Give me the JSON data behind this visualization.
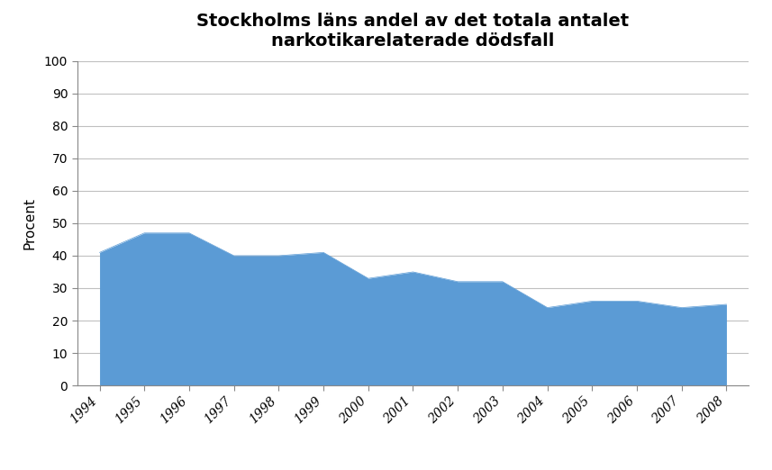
{
  "title": "Stockholms läns andel av det totala antalet\nnarkotikarelaterade dödsfall",
  "ylabel": "Procent",
  "years": [
    1994,
    1995,
    1996,
    1997,
    1998,
    1999,
    2000,
    2001,
    2002,
    2003,
    2004,
    2005,
    2006,
    2007,
    2008
  ],
  "values": [
    41,
    47,
    47,
    40,
    40,
    41,
    33,
    35,
    32,
    32,
    24,
    26,
    26,
    24,
    25
  ],
  "fill_color": "#5b9bd5",
  "ylim": [
    0,
    100
  ],
  "yticks": [
    0,
    10,
    20,
    30,
    40,
    50,
    60,
    70,
    80,
    90,
    100
  ],
  "grid_color": "#c0c0c0",
  "background_color": "#ffffff",
  "title_fontsize": 14,
  "axis_label_fontsize": 11,
  "tick_fontsize": 10,
  "figsize": [
    8.57,
    5.22
  ],
  "dpi": 100
}
